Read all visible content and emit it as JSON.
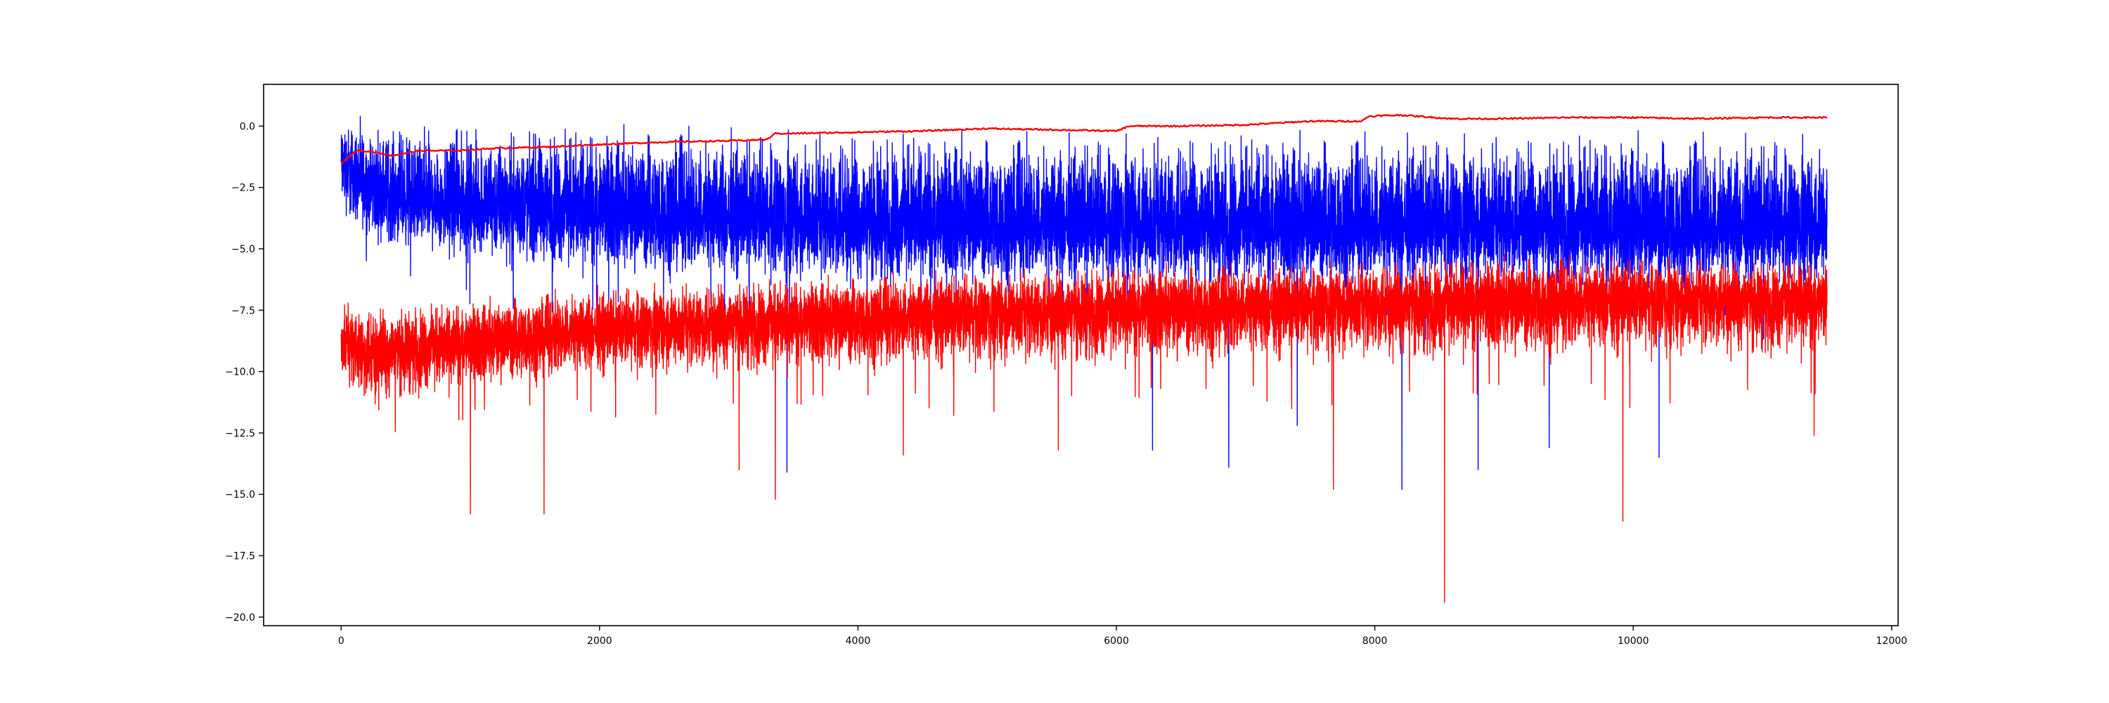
{
  "chart_data": {
    "type": "line",
    "title": "",
    "xlabel": "",
    "ylabel": "",
    "xlim": [
      -600,
      12050
    ],
    "ylim": [
      -20.35,
      1.7
    ],
    "grid": false,
    "legend": "none",
    "x_ticks": [
      0,
      2000,
      4000,
      6000,
      8000,
      10000,
      12000
    ],
    "x_tick_labels": [
      "0",
      "2000",
      "4000",
      "6000",
      "8000",
      "10000",
      "12000"
    ],
    "y_ticks": [
      0.0,
      -2.5,
      -5.0,
      -7.5,
      -10.0,
      -12.5,
      -15.0,
      -17.5,
      -20.0
    ],
    "y_tick_labels": [
      "0.0",
      "−2.5",
      "−5.0",
      "−7.5",
      "−10.0",
      "−12.5",
      "−15.0",
      "−17.5",
      "−20.0"
    ],
    "n_points": 11500,
    "series": [
      {
        "color": "#0000ff",
        "style": "noisy-band",
        "x": [
          0,
          200,
          500,
          1000,
          1500,
          2000,
          3000,
          4000,
          5000,
          6000,
          7000,
          8000,
          9000,
          10000,
          11000,
          11500
        ],
        "center": [
          -1.5,
          -2.5,
          -3.0,
          -3.2,
          -3.4,
          -3.5,
          -3.8,
          -4.0,
          -4.0,
          -4.1,
          -4.1,
          -4.1,
          -4.1,
          -4.2,
          -4.2,
          -4.2
        ],
        "upper": [
          0.7,
          0.6,
          0.5,
          0.5,
          0.5,
          0.5,
          0.5,
          0.4,
          0.3,
          0.3,
          0.3,
          0.3,
          0.3,
          0.3,
          0.3,
          0.3
        ],
        "lower": [
          -4.5,
          -5.5,
          -6.0,
          -6.5,
          -6.8,
          -7.0,
          -7.2,
          -7.5,
          -7.5,
          -7.6,
          -7.6,
          -7.6,
          -7.6,
          -7.6,
          -7.6,
          -7.6
        ],
        "spikes": [
          {
            "x": 3450,
            "y": -14.1
          },
          {
            "x": 6280,
            "y": -13.2
          },
          {
            "x": 6870,
            "y": -13.9
          },
          {
            "x": 7400,
            "y": -12.2
          },
          {
            "x": 8210,
            "y": -14.8
          },
          {
            "x": 8800,
            "y": -14.0
          },
          {
            "x": 9350,
            "y": -13.1
          },
          {
            "x": 10200,
            "y": -13.5
          }
        ]
      },
      {
        "color": "#ff0000",
        "style": "noisy-band",
        "x": [
          0,
          200,
          500,
          1000,
          1500,
          2000,
          3000,
          4000,
          5000,
          6000,
          7000,
          8000,
          9000,
          10000,
          11000,
          11500
        ],
        "center": [
          -8.8,
          -9.2,
          -9.0,
          -8.8,
          -8.5,
          -8.3,
          -8.0,
          -7.8,
          -7.6,
          -7.4,
          -7.3,
          -7.2,
          -7.1,
          -7.0,
          -7.0,
          -7.0
        ],
        "upper": [
          -6.8,
          -7.0,
          -7.0,
          -6.8,
          -6.5,
          -6.2,
          -6.0,
          -5.8,
          -5.5,
          -5.4,
          -5.3,
          -5.2,
          -5.0,
          -5.0,
          -5.2,
          -5.3
        ],
        "lower": [
          -11.0,
          -12.5,
          -12.0,
          -11.5,
          -11.2,
          -11.0,
          -11.0,
          -10.8,
          -10.8,
          -10.6,
          -10.5,
          -10.5,
          -10.4,
          -10.4,
          -10.4,
          -10.4
        ],
        "spikes": [
          {
            "x": 1000,
            "y": -15.8
          },
          {
            "x": 1570,
            "y": -15.8
          },
          {
            "x": 3080,
            "y": -14.0
          },
          {
            "x": 3360,
            "y": -15.2
          },
          {
            "x": 4350,
            "y": -13.4
          },
          {
            "x": 5550,
            "y": -13.2
          },
          {
            "x": 7680,
            "y": -14.8
          },
          {
            "x": 8540,
            "y": -19.4
          },
          {
            "x": 9920,
            "y": -16.1
          },
          {
            "x": 11400,
            "y": -12.6
          }
        ]
      },
      {
        "color": "#ff0000",
        "style": "smooth",
        "x": [
          0,
          50,
          120,
          250,
          400,
          600,
          900,
          1200,
          1600,
          2000,
          2500,
          3000,
          3300,
          3350,
          3500,
          4000,
          4500,
          5000,
          5500,
          6000,
          6100,
          6500,
          7000,
          7500,
          7900,
          7950,
          8200,
          8600,
          9000,
          9500,
          10000,
          10500,
          11000,
          11500
        ],
        "values": [
          -1.5,
          -1.3,
          -1.0,
          -1.05,
          -1.2,
          -1.0,
          -1.0,
          -0.9,
          -0.85,
          -0.75,
          -0.65,
          -0.6,
          -0.55,
          -0.3,
          -0.3,
          -0.25,
          -0.2,
          -0.1,
          -0.15,
          -0.2,
          0.0,
          0.0,
          0.05,
          0.2,
          0.2,
          0.4,
          0.45,
          0.3,
          0.3,
          0.35,
          0.35,
          0.3,
          0.35,
          0.35
        ]
      }
    ]
  }
}
